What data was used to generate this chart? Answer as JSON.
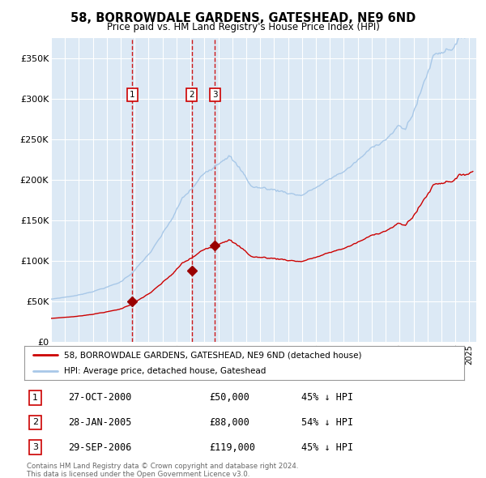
{
  "title": "58, BORROWDALE GARDENS, GATESHEAD, NE9 6ND",
  "subtitle": "Price paid vs. HM Land Registry's House Price Index (HPI)",
  "background_color": "#dce9f5",
  "plot_bg_color": "#dce9f5",
  "grid_color": "#ffffff",
  "hpi_color": "#a8c8e8",
  "price_color": "#cc0000",
  "marker_color": "#990000",
  "sale_dates": [
    2000.83,
    2005.08,
    2006.75
  ],
  "sale_prices": [
    50000,
    88000,
    119000
  ],
  "sale_label_texts": [
    "1",
    "2",
    "3"
  ],
  "sale_labels": [
    {
      "label": "1",
      "date": "27-OCT-2000",
      "price": "£50,000",
      "hpi": "45% ↓ HPI"
    },
    {
      "label": "2",
      "date": "28-JAN-2005",
      "price": "£88,000",
      "hpi": "54% ↓ HPI"
    },
    {
      "label": "3",
      "date": "29-SEP-2006",
      "price": "£119,000",
      "hpi": "45% ↓ HPI"
    }
  ],
  "vline_color": "#cc0000",
  "box_label_color": "#cc0000",
  "legend_line1": "58, BORROWDALE GARDENS, GATESHEAD, NE9 6ND (detached house)",
  "legend_line2": "HPI: Average price, detached house, Gateshead",
  "footer": "Contains HM Land Registry data © Crown copyright and database right 2024.\nThis data is licensed under the Open Government Licence v3.0.",
  "ylim": [
    0,
    375000
  ],
  "yticks": [
    0,
    50000,
    100000,
    150000,
    200000,
    250000,
    300000,
    350000
  ],
  "xlim_start": 1995.0,
  "xlim_end": 2025.5
}
